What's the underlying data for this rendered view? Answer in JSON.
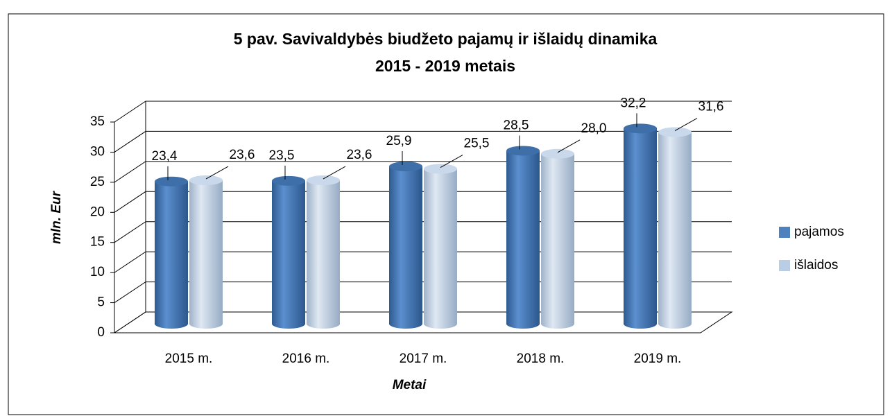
{
  "chart_data": {
    "type": "bar3d",
    "title": [
      "5 pav. Savivaldybės biudžeto pajamų ir išlaidų dinamika",
      "2015 - 2019 metais"
    ],
    "y_label": "mln. Eur",
    "x_label": "Metai",
    "categories": [
      "2015 m.",
      "2016 m.",
      "2017 m.",
      "2018 m.",
      "2019 m."
    ],
    "series": [
      {
        "name": "pajamos",
        "color": "#4f81bd",
        "values": [
          23.4,
          23.5,
          25.9,
          28.5,
          32.2
        ],
        "value_labels": [
          "23,4",
          "23,5",
          "25,9",
          "28,5",
          "32,2"
        ]
      },
      {
        "name": "išlaidos",
        "color": "#b9cde5",
        "values": [
          23.6,
          23.6,
          25.5,
          28.0,
          31.6
        ],
        "value_labels": [
          "23,6",
          "23,6",
          "25,5",
          "28,0",
          "31,6"
        ]
      }
    ],
    "ylim": [
      0,
      35
    ],
    "yticks": [
      0,
      5,
      10,
      15,
      20,
      25,
      30,
      35
    ],
    "grid": true,
    "legend": "right"
  }
}
